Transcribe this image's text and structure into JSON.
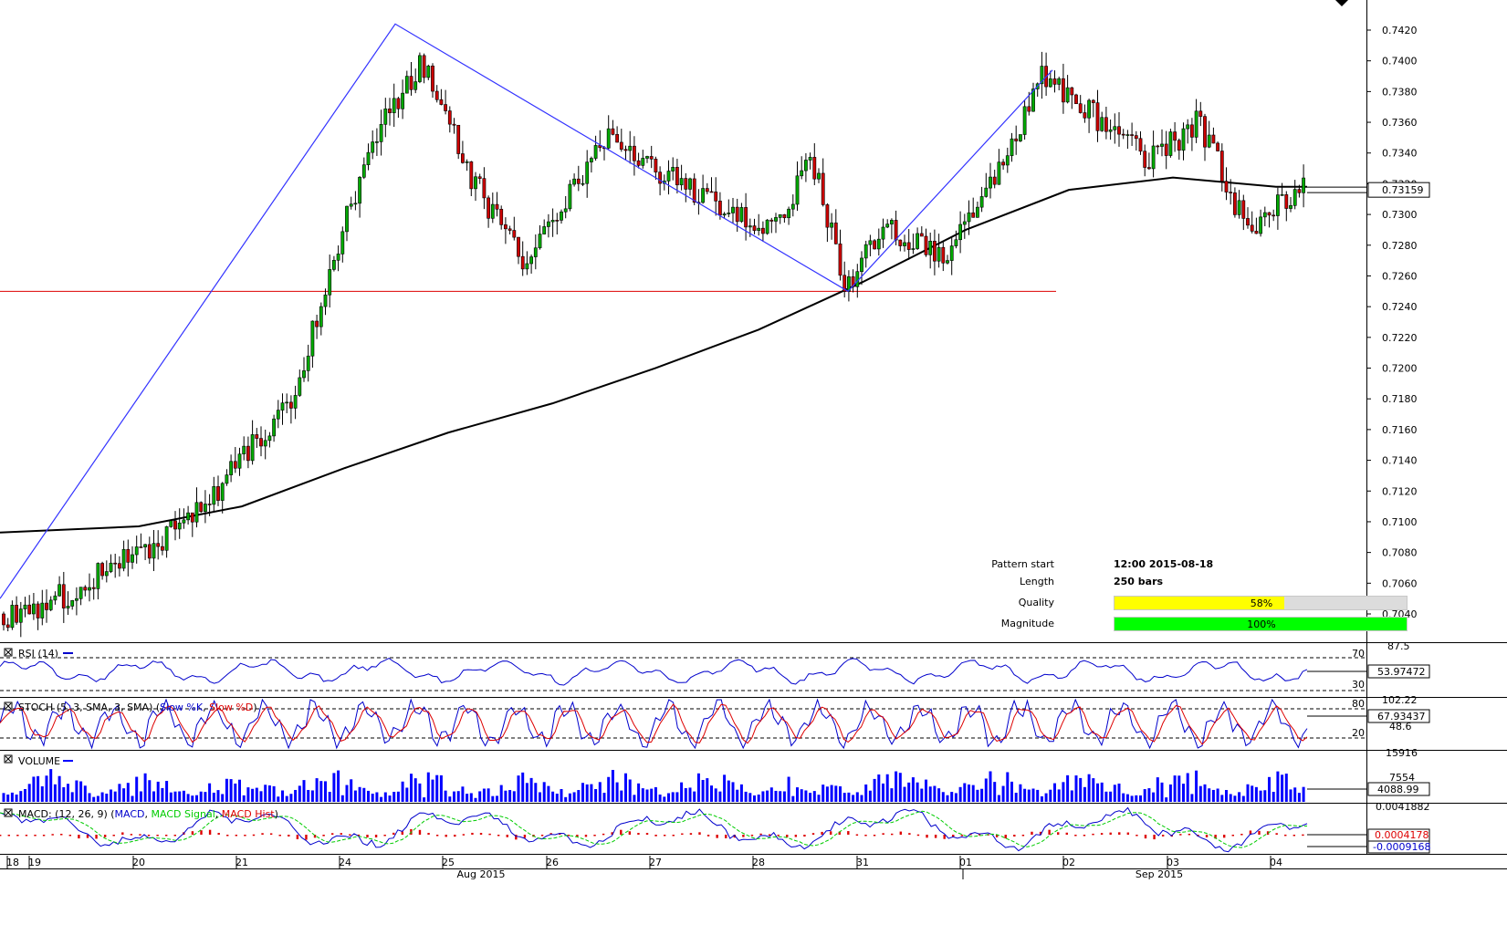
{
  "colors": {
    "candle_up": "#00aa00",
    "candle_down": "#cc0000",
    "pattern_line": "#3333ff",
    "support_line": "#dd0000",
    "moving_average": "#000000",
    "rsi_line": "#0000cc",
    "stoch_k": "#0000cc",
    "stoch_d": "#dd0000",
    "volume": "#0000ff",
    "macd": "#0000cc",
    "macd_signal": "#00cc00",
    "macd_hist": "#dd0000",
    "quality_bar": "#ffff00",
    "magnitude_bar": "#00ff00"
  },
  "info": {
    "pattern_start_label": "Pattern start",
    "pattern_start_value": "12:00 2015-08-18",
    "length_label": "Length",
    "length_value": "250 bars",
    "quality_label": "Quality",
    "quality_value": "58%",
    "quality_fraction": 0.58,
    "magnitude_label": "Magnitude",
    "magnitude_value": "100%",
    "magnitude_fraction": 1.0
  },
  "chart_data": [
    {
      "type": "candlestick",
      "panel": "price",
      "ylim": [
        0.7025,
        0.7435
      ],
      "y_ticks": [
        "0.7420",
        "0.7400",
        "0.7380",
        "0.7360",
        "0.7340",
        "0.7320",
        "0.7300",
        "0.7280",
        "0.7260",
        "0.7240",
        "0.7220",
        "0.7200",
        "0.7180",
        "0.7160",
        "0.7140",
        "0.7120",
        "0.7100",
        "0.7080",
        "0.7060",
        "0.7040"
      ],
      "current_price": "0.73159",
      "x_ticks": [
        "18",
        "19",
        "20",
        "21",
        "24",
        "25",
        "26",
        "27",
        "28",
        "31",
        "01",
        "02",
        "03",
        "04"
      ],
      "x_month_labels": [
        "Aug 2015",
        "Sep 2015"
      ],
      "support_level": 0.725,
      "pattern_points": [
        {
          "date": "18",
          "value": 0.705
        },
        {
          "date": "24",
          "value": 0.7424
        },
        {
          "date": "28",
          "value": 0.725
        },
        {
          "date": "01",
          "value": 0.7394
        }
      ],
      "moving_average": [
        {
          "date": "18",
          "value": 0.7093
        },
        {
          "date": "20",
          "value": 0.7097
        },
        {
          "date": "21",
          "value": 0.711
        },
        {
          "date": "24",
          "value": 0.7135
        },
        {
          "date": "25",
          "value": 0.7158
        },
        {
          "date": "26",
          "value": 0.7177
        },
        {
          "date": "27",
          "value": 0.72
        },
        {
          "date": "28",
          "value": 0.7225
        },
        {
          "date": "31",
          "value": 0.7256
        },
        {
          "date": "01",
          "value": 0.729
        },
        {
          "date": "02",
          "value": 0.7316
        },
        {
          "date": "03",
          "value": 0.7324
        },
        {
          "date": "04",
          "value": 0.7318
        }
      ],
      "price_path": [
        {
          "date": "18",
          "value": 0.704
        },
        {
          "date": "19",
          "value": 0.706
        },
        {
          "date": "20",
          "value": 0.71
        },
        {
          "date": "21",
          "value": 0.718
        },
        {
          "date": "24",
          "value": 0.735
        },
        {
          "date": "24",
          "value": 0.74
        },
        {
          "date": "25",
          "value": 0.732
        },
        {
          "date": "25",
          "value": 0.727
        },
        {
          "date": "26",
          "value": 0.735
        },
        {
          "date": "27",
          "value": 0.731
        },
        {
          "date": "28",
          "value": 0.729
        },
        {
          "date": "28",
          "value": 0.734
        },
        {
          "date": "28",
          "value": 0.7255
        },
        {
          "date": "31",
          "value": 0.729
        },
        {
          "date": "31",
          "value": 0.727
        },
        {
          "date": "01",
          "value": 0.732
        },
        {
          "date": "01",
          "value": 0.739
        },
        {
          "date": "02",
          "value": 0.7365
        },
        {
          "date": "02",
          "value": 0.7335
        },
        {
          "date": "03",
          "value": 0.736
        },
        {
          "date": "03",
          "value": 0.7285
        },
        {
          "date": "04",
          "value": 0.7315
        }
      ]
    },
    {
      "type": "line",
      "panel": "rsi",
      "title": "RSI (14)",
      "levels": [
        "70",
        "30"
      ],
      "top_label": "87.5",
      "current_value": "53.97472"
    },
    {
      "type": "line",
      "panel": "stoch",
      "title_prefix": "STOCH (5, 3, SMA, 3, SMA)",
      "series_names": [
        "Slow %K",
        "Slow %D"
      ],
      "levels": [
        "80",
        "20"
      ],
      "top_label": "102.22",
      "mid_label": "48.6",
      "current_value": "67.93437"
    },
    {
      "type": "bar",
      "panel": "volume",
      "title": "VOLUME",
      "top_label": "15916",
      "mid_label": "7554",
      "current_value": "4088.99"
    },
    {
      "type": "line",
      "panel": "macd",
      "title_prefix": "MACD: (12, 26, 9)",
      "series_names": [
        "MACD",
        "MACD Signal",
        "MACD Hist"
      ],
      "top_label": "0.0041882",
      "current_hist": "0.0004178",
      "current_macd": "-0.0009168"
    }
  ]
}
